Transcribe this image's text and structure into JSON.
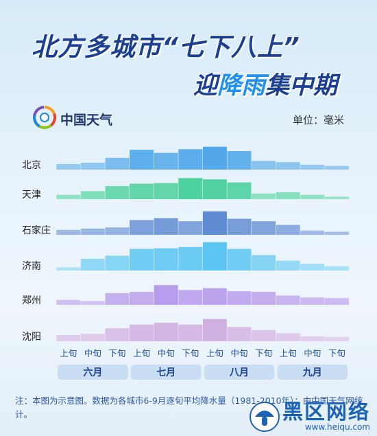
{
  "header": {
    "title_line1": "北方多城市“七下八上”",
    "title_line2_pre": "迎",
    "title_line2_highlight": "降雨",
    "title_line2_post": "集中期",
    "logo_text": "中国天气",
    "unit": "单位：毫米"
  },
  "chart_data": {
    "type": "bar",
    "x": [
      "上旬",
      "中旬",
      "下旬",
      "上旬",
      "中旬",
      "下旬",
      "上旬",
      "中旬",
      "下旬",
      "上旬",
      "中旬",
      "下旬"
    ],
    "months": [
      "六月",
      "七月",
      "八月",
      "九月"
    ],
    "series": [
      {
        "name": "北京",
        "color": "#3d9ee8",
        "values": [
          9,
          11,
          19,
          32,
          27,
          33,
          37,
          30,
          14,
          12,
          8,
          6
        ]
      },
      {
        "name": "天津",
        "color": "#2fc98e",
        "values": [
          7,
          13,
          21,
          25,
          26,
          34,
          32,
          27,
          9,
          11,
          7,
          4
        ]
      },
      {
        "name": "石家庄",
        "color": "#4e7fce",
        "values": [
          8,
          10,
          12,
          24,
          27,
          22,
          38,
          26,
          22,
          16,
          7,
          5
        ]
      },
      {
        "name": "济南",
        "color": "#5cc6f2",
        "values": [
          5,
          19,
          24,
          35,
          36,
          38,
          46,
          35,
          25,
          16,
          11,
          7
        ]
      },
      {
        "name": "郑州",
        "color": "#a98ae8",
        "values": [
          8,
          6,
          19,
          21,
          32,
          24,
          27,
          22,
          21,
          15,
          12,
          11
        ]
      },
      {
        "name": "沈阳",
        "color": "#c9a5dc",
        "values": [
          10,
          12,
          21,
          27,
          30,
          27,
          36,
          23,
          18,
          13,
          8,
          7
        ]
      }
    ]
  },
  "footer": {
    "note": "注：本图为示意图。数据为各城市6-9月逐旬平均降水量（1981-2010年）；由中国天气网统计。",
    "watermark_main": "黑区网络",
    "watermark_sub": "www.heiqu.com"
  }
}
